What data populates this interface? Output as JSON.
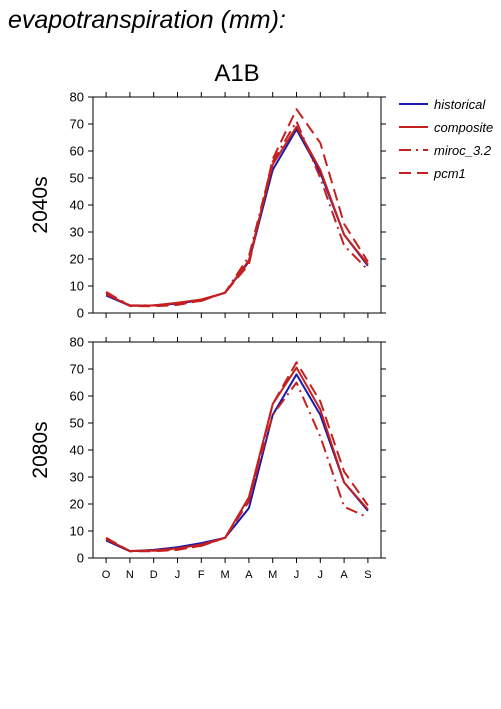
{
  "page_title": "evapotranspiration (mm):",
  "chart_data": {
    "type": "line",
    "title": "A1B",
    "categories": [
      "O",
      "N",
      "D",
      "J",
      "F",
      "M",
      "A",
      "M",
      "J",
      "J",
      "A",
      "S"
    ],
    "ylim": [
      0,
      80
    ],
    "yticks": [
      0,
      10,
      20,
      30,
      40,
      50,
      60,
      70,
      80
    ],
    "legend": {
      "placement": "top-right",
      "entries": [
        {
          "name": "historical",
          "color": "#1a1aa8",
          "dash": "solid"
        },
        {
          "name": "composite",
          "color": "#c42020",
          "dash": "solid"
        },
        {
          "name": "miroc_3.2",
          "color": "#c42020",
          "dash": "dashdot"
        },
        {
          "name": "pcm1",
          "color": "#c42020",
          "dash": "dash"
        }
      ]
    },
    "panels": [
      {
        "ylabel": "2040s",
        "series": [
          {
            "name": "historical",
            "values": [
              6.5,
              2.7,
              2.8,
              3.5,
              4.8,
              7.5,
              19,
              53,
              68,
              52,
              29,
              17.5
            ]
          },
          {
            "name": "composite",
            "values": [
              7,
              2.7,
              2.8,
              3.8,
              5,
              7.5,
              19.5,
              55,
              69,
              53,
              29,
              18
            ]
          },
          {
            "name": "miroc_3.2",
            "values": [
              7.5,
              2.8,
              2.8,
              3.3,
              4.5,
              7.6,
              21,
              56,
              71,
              50,
              25,
              16
            ]
          },
          {
            "name": "pcm1",
            "values": [
              7.8,
              2.6,
              2.5,
              3,
              4.6,
              7.6,
              18,
              57,
              75.5,
              63,
              33,
              19
            ]
          }
        ]
      },
      {
        "ylabel": "2080s",
        "series": [
          {
            "name": "historical",
            "values": [
              6.5,
              2.5,
              3,
              4,
              5.5,
              7.5,
              18.5,
              53,
              68,
              53,
              28,
              17.5
            ]
          },
          {
            "name": "composite",
            "values": [
              7,
              2.6,
              2.8,
              3.5,
              5,
              7.5,
              22.5,
              57,
              70.5,
              55,
              28,
              18
            ]
          },
          {
            "name": "miroc_3.2",
            "values": [
              7,
              2.6,
              2.7,
              3.2,
              4.5,
              7.5,
              22,
              53,
              65,
              45,
              19,
              15
            ]
          },
          {
            "name": "pcm1",
            "values": [
              7.5,
              2.5,
              2.5,
              3,
              4.6,
              7.5,
              21,
              57,
              72.5,
              58,
              32,
              19.5
            ]
          }
        ]
      }
    ]
  }
}
